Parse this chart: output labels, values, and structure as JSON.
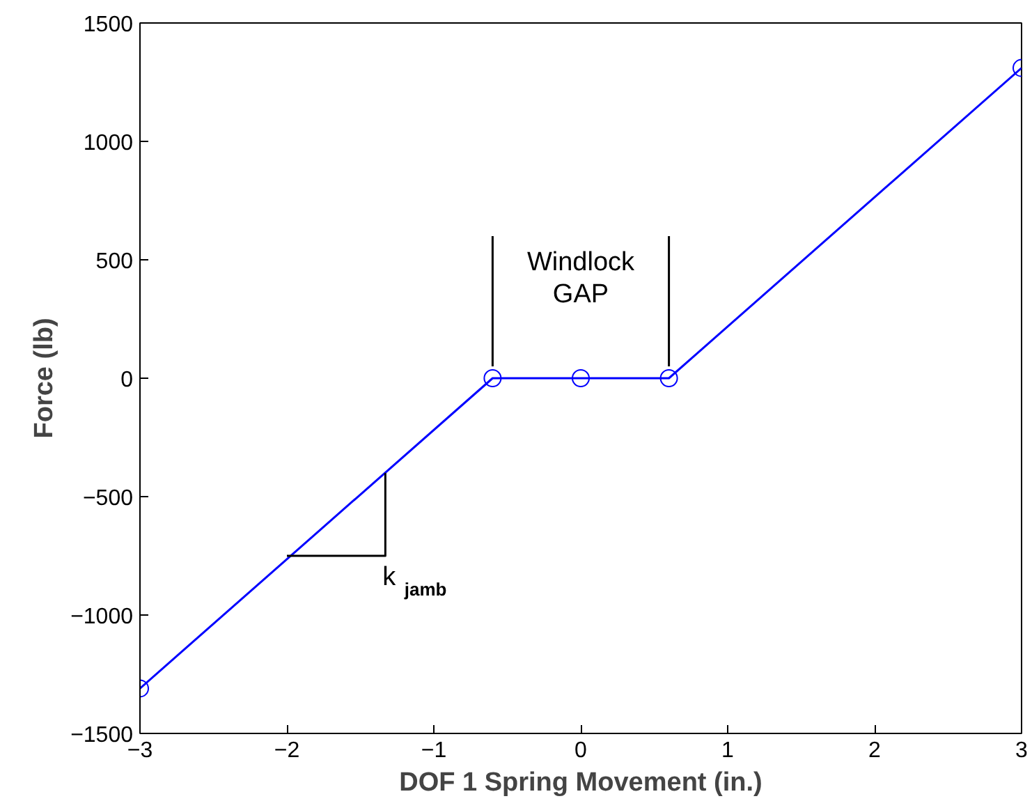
{
  "chart_data": {
    "type": "line",
    "xlabel": "DOF 1 Spring Movement (in.)",
    "ylabel": "Force (lb)",
    "x": [
      -3,
      -0.6,
      0,
      0.6,
      3
    ],
    "series": [
      {
        "color": "#0000ff",
        "values": [
          -1310,
          0,
          0,
          0,
          1310
        ]
      },
      {
        "color": "#000000",
        "x": [
          -0.6,
          -0.6
        ],
        "values": [
          50,
          600
        ],
        "marker": "none"
      },
      {
        "color": "#000000",
        "x": [
          0.6,
          0.6
        ],
        "values": [
          50,
          600
        ],
        "marker": "none"
      },
      {
        "color": "#000000",
        "x": [
          -2,
          -1.33,
          -1.33
        ],
        "values": [
          -750,
          -750,
          -400
        ],
        "marker": "none"
      }
    ],
    "marker": "circle",
    "line_style": "solid",
    "grid": false,
    "xlim": [
      -3,
      3
    ],
    "xticks": [
      -3,
      -2,
      -1,
      0,
      1,
      2,
      3
    ],
    "ylim": [
      -1500,
      1500
    ],
    "yticks": [
      -1500,
      -1000,
      -500,
      0,
      500,
      1000,
      1500
    ],
    "annotations": [
      "Windlock\nGAP",
      "k$_{jamb}$"
    ]
  }
}
